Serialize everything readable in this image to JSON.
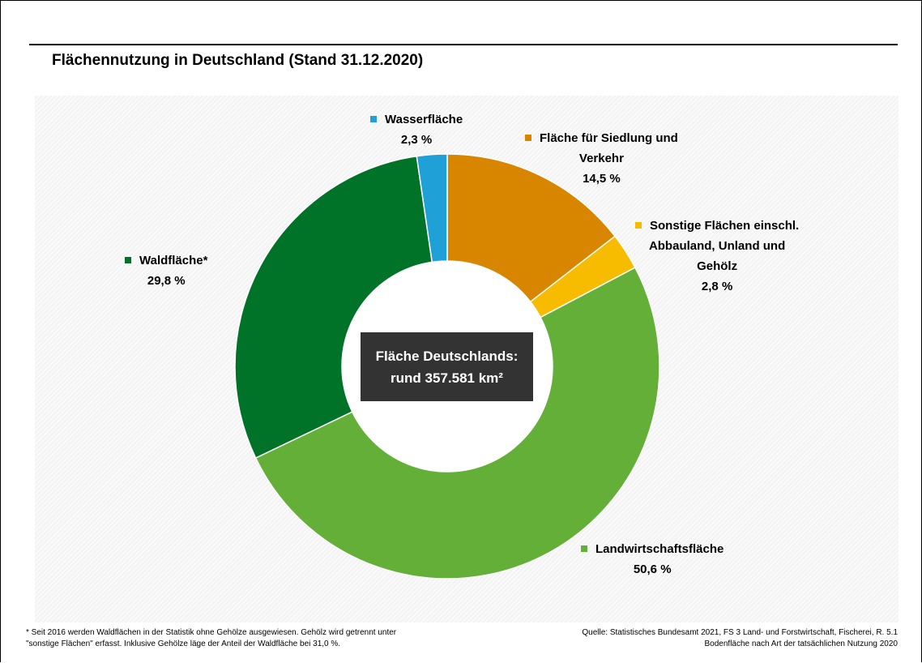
{
  "title": "Flächennutzung in Deutschland (Stand 31.12.2020)",
  "center_box": {
    "line1": "Fläche Deutschlands:",
    "line2": "rund 357.581 km²"
  },
  "chart_data": {
    "type": "pie",
    "donut": true,
    "title": "Flächennutzung in Deutschland (Stand 31.12.2020)",
    "series": [
      {
        "name": "Fläche für Siedlung und Verkehr",
        "value": 14.5,
        "label": "14,5 %",
        "color": "#D88600"
      },
      {
        "name": "Sonstige Flächen einschl. Abbauland, Unland und Gehölz",
        "value": 2.8,
        "label": "2,8 %",
        "color": "#F7BC00"
      },
      {
        "name": "Landwirtschaftsfläche",
        "value": 50.6,
        "label": "50,6 %",
        "color": "#63AF38"
      },
      {
        "name": "Waldfläche*",
        "value": 29.8,
        "label": "29,8 %",
        "color": "#007328"
      },
      {
        "name": "Wasserfläche",
        "value": 2.3,
        "label": "2,3 %",
        "color": "#1FA0D7"
      }
    ]
  },
  "labels": {
    "siedlung": {
      "line1": "Fläche für Siedlung und",
      "line2": "Verkehr",
      "value": "14,5 %"
    },
    "sonstige": {
      "line1": "Sonstige Flächen einschl.",
      "line2": "Abbauland, Unland und",
      "line3": "Gehölz",
      "value": "2,8 %"
    },
    "landwirtschaft": {
      "line1": "Landwirtschaftsfläche",
      "value": "50,6 %"
    },
    "wald": {
      "line1": "Waldfläche*",
      "value": "29,8 %"
    },
    "wasser": {
      "line1": "Wasserfläche",
      "value": "2,3 %"
    }
  },
  "footnote": {
    "line1": "* Seit 2016 werden Waldflächen in der Statistik ohne Gehölze ausgewiesen. Gehölz wird getrennt unter",
    "line2": "\"sonstige Flächen\" erfasst. Inklusive Gehölze läge der Anteil der Waldfläche bei 31,0 %."
  },
  "source": {
    "line1": "Quelle: Statistisches Bundesamt 2021, FS 3 Land- und Forstwirtschaft, Fischerei, R. 5.1",
    "line2": "Bodenfläche nach Art der tatsächlichen Nutzung 2020"
  }
}
